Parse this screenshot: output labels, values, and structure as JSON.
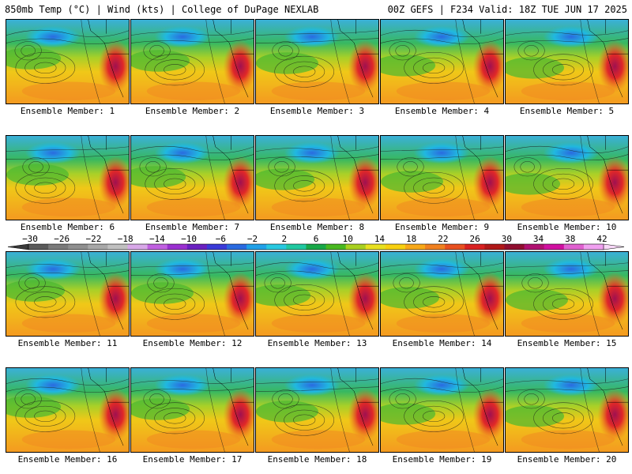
{
  "header": {
    "title_left": "850mb Temp (°C) | Wind (kts) | College of DuPage NEXLAB",
    "title_right": "00Z GEFS | F234 Valid: 18Z TUE JUN 17 2025"
  },
  "members": [
    {
      "label": "Ensemble Member: 1"
    },
    {
      "label": "Ensemble Member: 2"
    },
    {
      "label": "Ensemble Member: 3"
    },
    {
      "label": "Ensemble Member: 4"
    },
    {
      "label": "Ensemble Member: 5"
    },
    {
      "label": "Ensemble Member: 6"
    },
    {
      "label": "Ensemble Member: 7"
    },
    {
      "label": "Ensemble Member: 8"
    },
    {
      "label": "Ensemble Member: 9"
    },
    {
      "label": "Ensemble Member: 10"
    },
    {
      "label": "Ensemble Member: 11"
    },
    {
      "label": "Ensemble Member: 12"
    },
    {
      "label": "Ensemble Member: 13"
    },
    {
      "label": "Ensemble Member: 14"
    },
    {
      "label": "Ensemble Member: 15"
    },
    {
      "label": "Ensemble Member: 16"
    },
    {
      "label": "Ensemble Member: 17"
    },
    {
      "label": "Ensemble Member: 18"
    },
    {
      "label": "Ensemble Member: 19"
    },
    {
      "label": "Ensemble Member: 20"
    }
  ],
  "colorbar": {
    "tick_labels": [
      "−30",
      "−26",
      "−22",
      "−18",
      "−14",
      "−10",
      "−6",
      "−2",
      "2",
      "6",
      "10",
      "14",
      "18",
      "22",
      "26",
      "30",
      "34",
      "38",
      "42"
    ],
    "colors": [
      "#5a5a5a",
      "#7a7a7a",
      "#8f8f8f",
      "#a8a8a8",
      "#c0c0c0",
      "#d8a8e8",
      "#c060e0",
      "#9a30d0",
      "#6a20c0",
      "#3a3ad8",
      "#2a6ae0",
      "#20a0e8",
      "#28c8e0",
      "#20c8a0",
      "#18a848",
      "#48b820",
      "#a8d020",
      "#e8e020",
      "#f8d010",
      "#f8a818",
      "#f08020",
      "#e85020",
      "#d82020",
      "#b01818",
      "#900e30",
      "#b01070",
      "#d010a0",
      "#e060d0",
      "#f0a0f0"
    ]
  }
}
